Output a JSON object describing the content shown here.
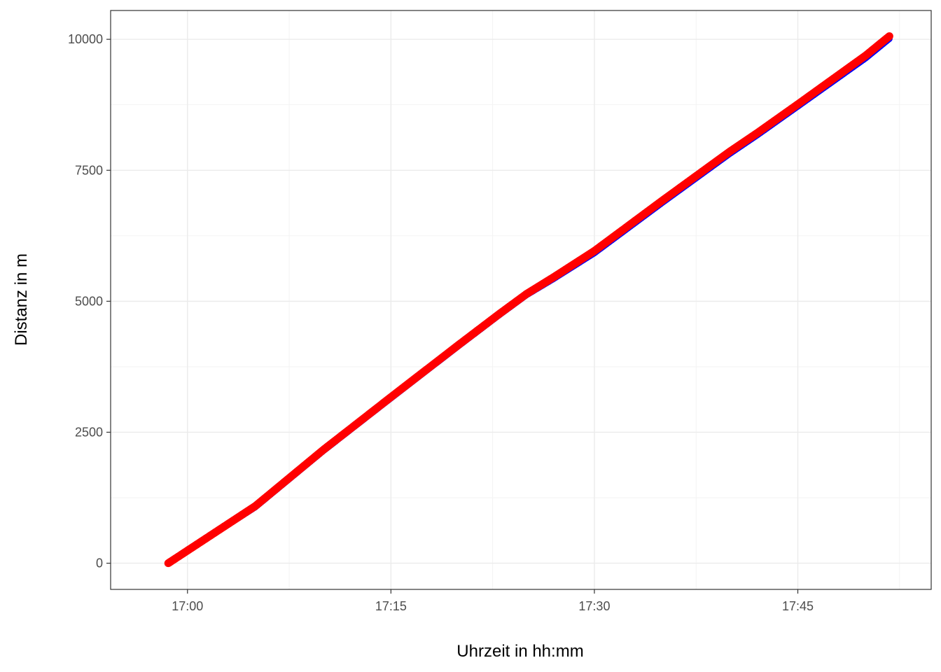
{
  "chart_data": {
    "type": "scatter",
    "title": "",
    "xlabel": "Uhrzeit in hh:mm",
    "ylabel": "Distanz in m",
    "x_ticks": [
      "17:00",
      "17:15",
      "17:30",
      "17:45"
    ],
    "y_ticks": [
      "0",
      "2500",
      "5000",
      "7500",
      "10000"
    ],
    "y_tick_values": [
      0,
      2500,
      5000,
      7500,
      10000
    ],
    "xlim": [
      "16:54:20",
      "17:54:50"
    ],
    "ylim": [
      -500,
      10550
    ],
    "grid": true,
    "legend": "none",
    "series": [
      {
        "color": "#0000ff",
        "x": [
          "16:58:35",
          "17:05:00",
          "17:10:00",
          "17:15:00",
          "17:20:00",
          "17:23:00",
          "17:25:00",
          "17:27:00",
          "17:30:00",
          "17:35:00",
          "17:40:00",
          "17:42:00",
          "17:45:00",
          "17:50:00",
          "17:51:45"
        ],
        "y": [
          0,
          1070,
          2140,
          3150,
          4150,
          4740,
          5120,
          5430,
          5920,
          6880,
          7820,
          8170,
          8720,
          9640,
          10010
        ]
      },
      {
        "color": "#ff0000",
        "x": [
          "16:58:35",
          "17:05:00",
          "17:10:00",
          "17:15:00",
          "17:20:00",
          "17:23:00",
          "17:25:00",
          "17:27:00",
          "17:30:00",
          "17:35:00",
          "17:40:00",
          "17:42:00",
          "17:45:00",
          "17:50:00",
          "17:51:45"
        ],
        "y": [
          0,
          1090,
          2160,
          3170,
          4170,
          4760,
          5140,
          5460,
          5960,
          6920,
          7860,
          8210,
          8760,
          9690,
          10060
        ]
      }
    ]
  }
}
